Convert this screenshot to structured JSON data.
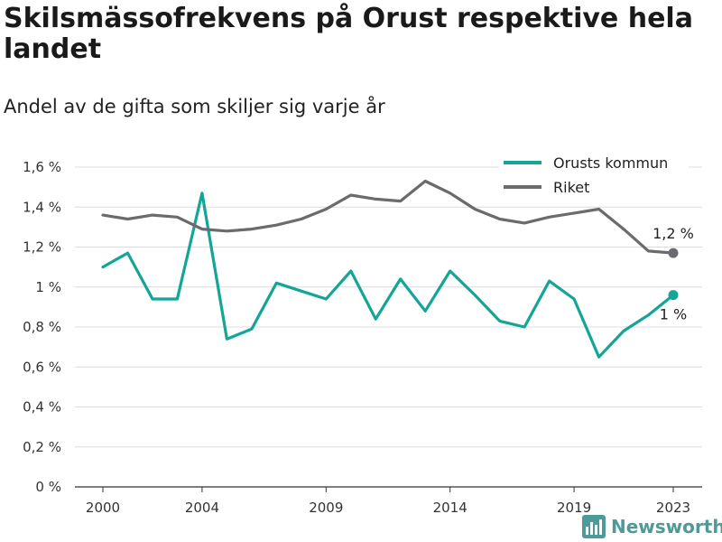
{
  "header": {
    "title": "Skilsmässofrekvens på Orust respektive hela landet",
    "subtitle": "Andel av de gifta som skiljer sig varje år"
  },
  "brand": {
    "name": "Newsworthy",
    "color": "#4e9a9a",
    "icon": "bar-chart-logo-icon"
  },
  "chart_data": {
    "type": "line",
    "x": [
      2000,
      2001,
      2002,
      2003,
      2004,
      2005,
      2006,
      2007,
      2008,
      2009,
      2010,
      2011,
      2012,
      2013,
      2014,
      2015,
      2016,
      2017,
      2018,
      2019,
      2020,
      2021,
      2022,
      2023
    ],
    "x_ticks": [
      "2000",
      "2004",
      "2009",
      "2014",
      "2019",
      "2023"
    ],
    "y_ticks": [
      "0 %",
      "0,2 %",
      "0,4 %",
      "0,6 %",
      "0,8 %",
      "1 %",
      "1,2 %",
      "1,4 %",
      "1,6 %"
    ],
    "ylim": [
      0,
      1.6
    ],
    "xlim": [
      2000,
      2023
    ],
    "grid": true,
    "legend_position": "top-right",
    "series": [
      {
        "name": "Orusts kommun",
        "color": "#13a596",
        "values": [
          1.1,
          1.17,
          0.94,
          0.94,
          1.47,
          0.74,
          0.79,
          1.02,
          0.98,
          0.94,
          1.08,
          0.84,
          1.04,
          0.88,
          1.08,
          0.96,
          0.83,
          0.8,
          1.03,
          0.94,
          0.65,
          0.78,
          0.86,
          0.96
        ],
        "end_label": "1 %"
      },
      {
        "name": "Riket",
        "color": "#6b6b6f",
        "values": [
          1.36,
          1.34,
          1.36,
          1.35,
          1.29,
          1.28,
          1.29,
          1.31,
          1.34,
          1.39,
          1.46,
          1.44,
          1.43,
          1.53,
          1.47,
          1.39,
          1.34,
          1.32,
          1.35,
          1.37,
          1.39,
          1.29,
          1.18,
          1.17
        ],
        "end_label": "1,2 %"
      }
    ]
  }
}
